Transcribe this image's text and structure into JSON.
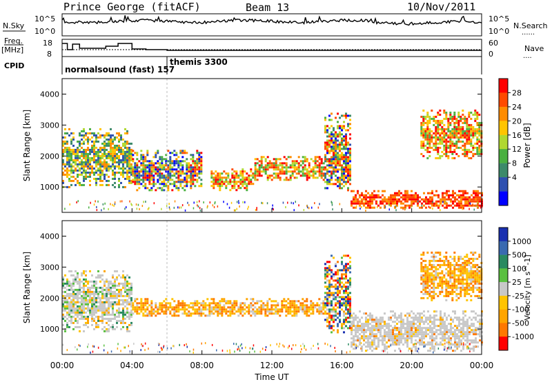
{
  "header": {
    "station": "Prince George (fitACF)",
    "beam": "Beam 13",
    "date": "10/Nov/2011"
  },
  "side_labels": {
    "nsky": "N.Sky",
    "nsearch": "N.Search",
    "nsearch_marker": "......",
    "freq": "Freq.",
    "freq_unit": "[MHz]",
    "nave": "Nave",
    "nave_marker": "....",
    "cpid": "CPID"
  },
  "strip_axes": {
    "nsky_ticks": [
      "10^5",
      "10^0"
    ],
    "nsearch_ticks": [
      "10^5",
      "10^0"
    ],
    "freq_ticks": [
      "18",
      "8"
    ],
    "nave_ticks": [
      "60",
      "0"
    ]
  },
  "cpid_labels": [
    "normalsound (fast) 157",
    "themis 3300"
  ],
  "time_axis": {
    "label": "Time UT",
    "ticks": [
      "00:00",
      "04:00",
      "08:00",
      "12:00",
      "16:00",
      "20:00",
      "00:00"
    ]
  },
  "chart_data": [
    {
      "type": "heatmap",
      "title": "Power",
      "ylabel": "Slant Range [km]",
      "xlabel": "Time UT",
      "xlim_hours": [
        0,
        24
      ],
      "ylim": [
        180,
        4500
      ],
      "yticks": [
        1000,
        2000,
        3000,
        4000
      ],
      "colorbar": {
        "label": "Power [dB]",
        "ticks": [
          "28",
          "24",
          "20",
          "16",
          "12",
          "8",
          "4"
        ],
        "colors": [
          "#ff0000",
          "#ff4a00",
          "#ff8c00",
          "#ffc400",
          "#b0d830",
          "#4ab040",
          "#3c8a6a",
          "#2e50b0",
          "#0000ff"
        ]
      },
      "regions": [
        {
          "t": [
            0.0,
            4.0
          ],
          "r": [
            1000,
            2900
          ],
          "level": "mid-high"
        },
        {
          "t": [
            4.0,
            8.0
          ],
          "r": [
            900,
            2200
          ],
          "level": "mixed"
        },
        {
          "t": [
            8.5,
            11.0
          ],
          "r": [
            900,
            1600
          ],
          "level": "high"
        },
        {
          "t": [
            11.0,
            15.0
          ],
          "r": [
            1200,
            2000
          ],
          "level": "high"
        },
        {
          "t": [
            15.0,
            16.5
          ],
          "r": [
            900,
            3400
          ],
          "level": "mixed"
        },
        {
          "t": [
            16.5,
            24.0
          ],
          "r": [
            300,
            900
          ],
          "level": "very-high"
        },
        {
          "t": [
            20.5,
            24.0
          ],
          "r": [
            1900,
            3500
          ],
          "level": "high"
        }
      ]
    },
    {
      "type": "heatmap",
      "title": "Velocity",
      "ylabel": "Slant Range [km]",
      "xlabel": "Time UT",
      "xlim_hours": [
        0,
        24
      ],
      "ylim": [
        180,
        4500
      ],
      "yticks": [
        1000,
        2000,
        3000,
        4000
      ],
      "colorbar": {
        "label": "Velocity [m s^-1]",
        "ticks": [
          "1000",
          "500",
          "100",
          "25",
          "-25",
          "-100",
          "-500",
          "-1000"
        ],
        "colors": [
          "#1a30b0",
          "#3a6ab0",
          "#2a8a60",
          "#5ac040",
          "#c8c8c8",
          "#ffc400",
          "#ffa500",
          "#ff7800",
          "#ff0000"
        ]
      },
      "regions": [
        {
          "t": [
            0.0,
            4.0
          ],
          "r": [
            900,
            2900
          ],
          "level": "mostly-ground-scatter"
        },
        {
          "t": [
            4.0,
            15.0
          ],
          "r": [
            1400,
            2000
          ],
          "level": "negative-orange"
        },
        {
          "t": [
            15.0,
            16.5
          ],
          "r": [
            900,
            3400
          ],
          "level": "mixed"
        },
        {
          "t": [
            16.5,
            24.0
          ],
          "r": [
            300,
            1600
          ],
          "level": "ground-scatter"
        },
        {
          "t": [
            20.5,
            24.0
          ],
          "r": [
            1900,
            3500
          ],
          "level": "negative-orange"
        }
      ]
    }
  ]
}
